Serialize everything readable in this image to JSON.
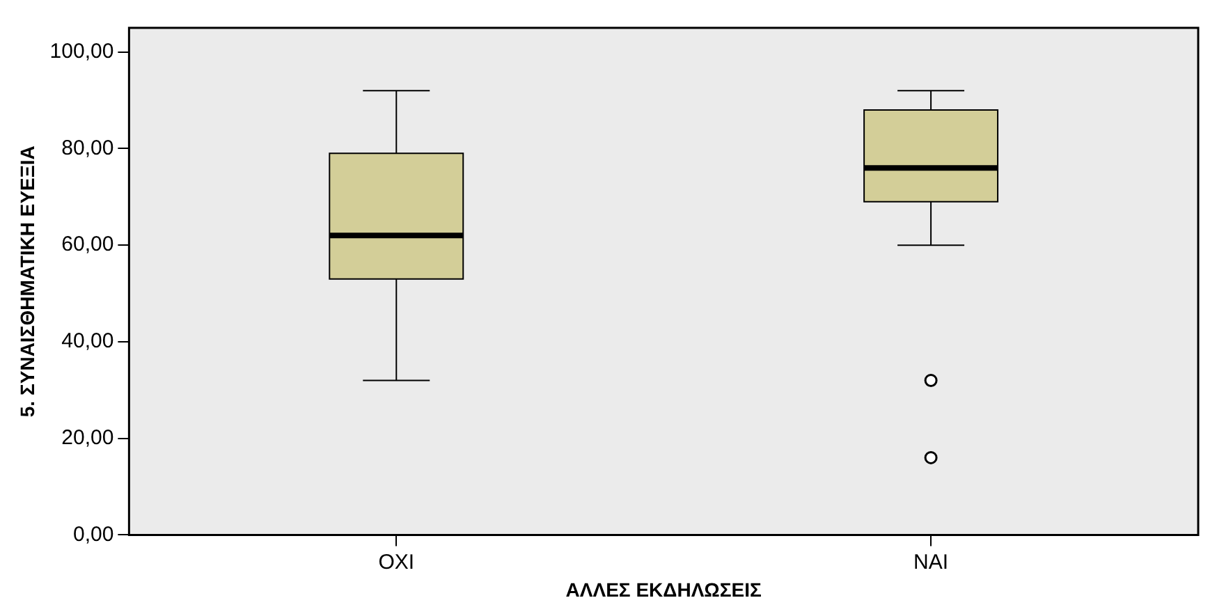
{
  "chart_data": {
    "type": "box",
    "xlabel": "ΑΛΛΕΣ ΕΚΔΗΛΩΣΕΙΣ",
    "ylabel": "5. ΣΥΝΑΙΣΘΗΜΑΤΙΚΗ ΕΥΕΞΙΑ",
    "categories": [
      "ΟΧΙ",
      "ΝΑΙ"
    ],
    "color": "#d3ce98",
    "boxes": [
      {
        "low": 32,
        "q1": 53,
        "median": 62,
        "q3": 79,
        "high": 92
      },
      {
        "low": 60,
        "q1": 69,
        "median": 76,
        "q3": 88,
        "high": 92,
        "outliers": [
          32,
          16
        ]
      }
    ],
    "ylim": [
      0,
      105
    ],
    "yticks": [
      {
        "value": 0,
        "label": "0,00"
      },
      {
        "value": 20,
        "label": "20,00"
      },
      {
        "value": 40,
        "label": "40,00"
      },
      {
        "value": 60,
        "label": "60,00"
      },
      {
        "value": 80,
        "label": "80,00"
      },
      {
        "value": 100,
        "label": "100,00"
      }
    ],
    "grid": false,
    "legend": false
  }
}
